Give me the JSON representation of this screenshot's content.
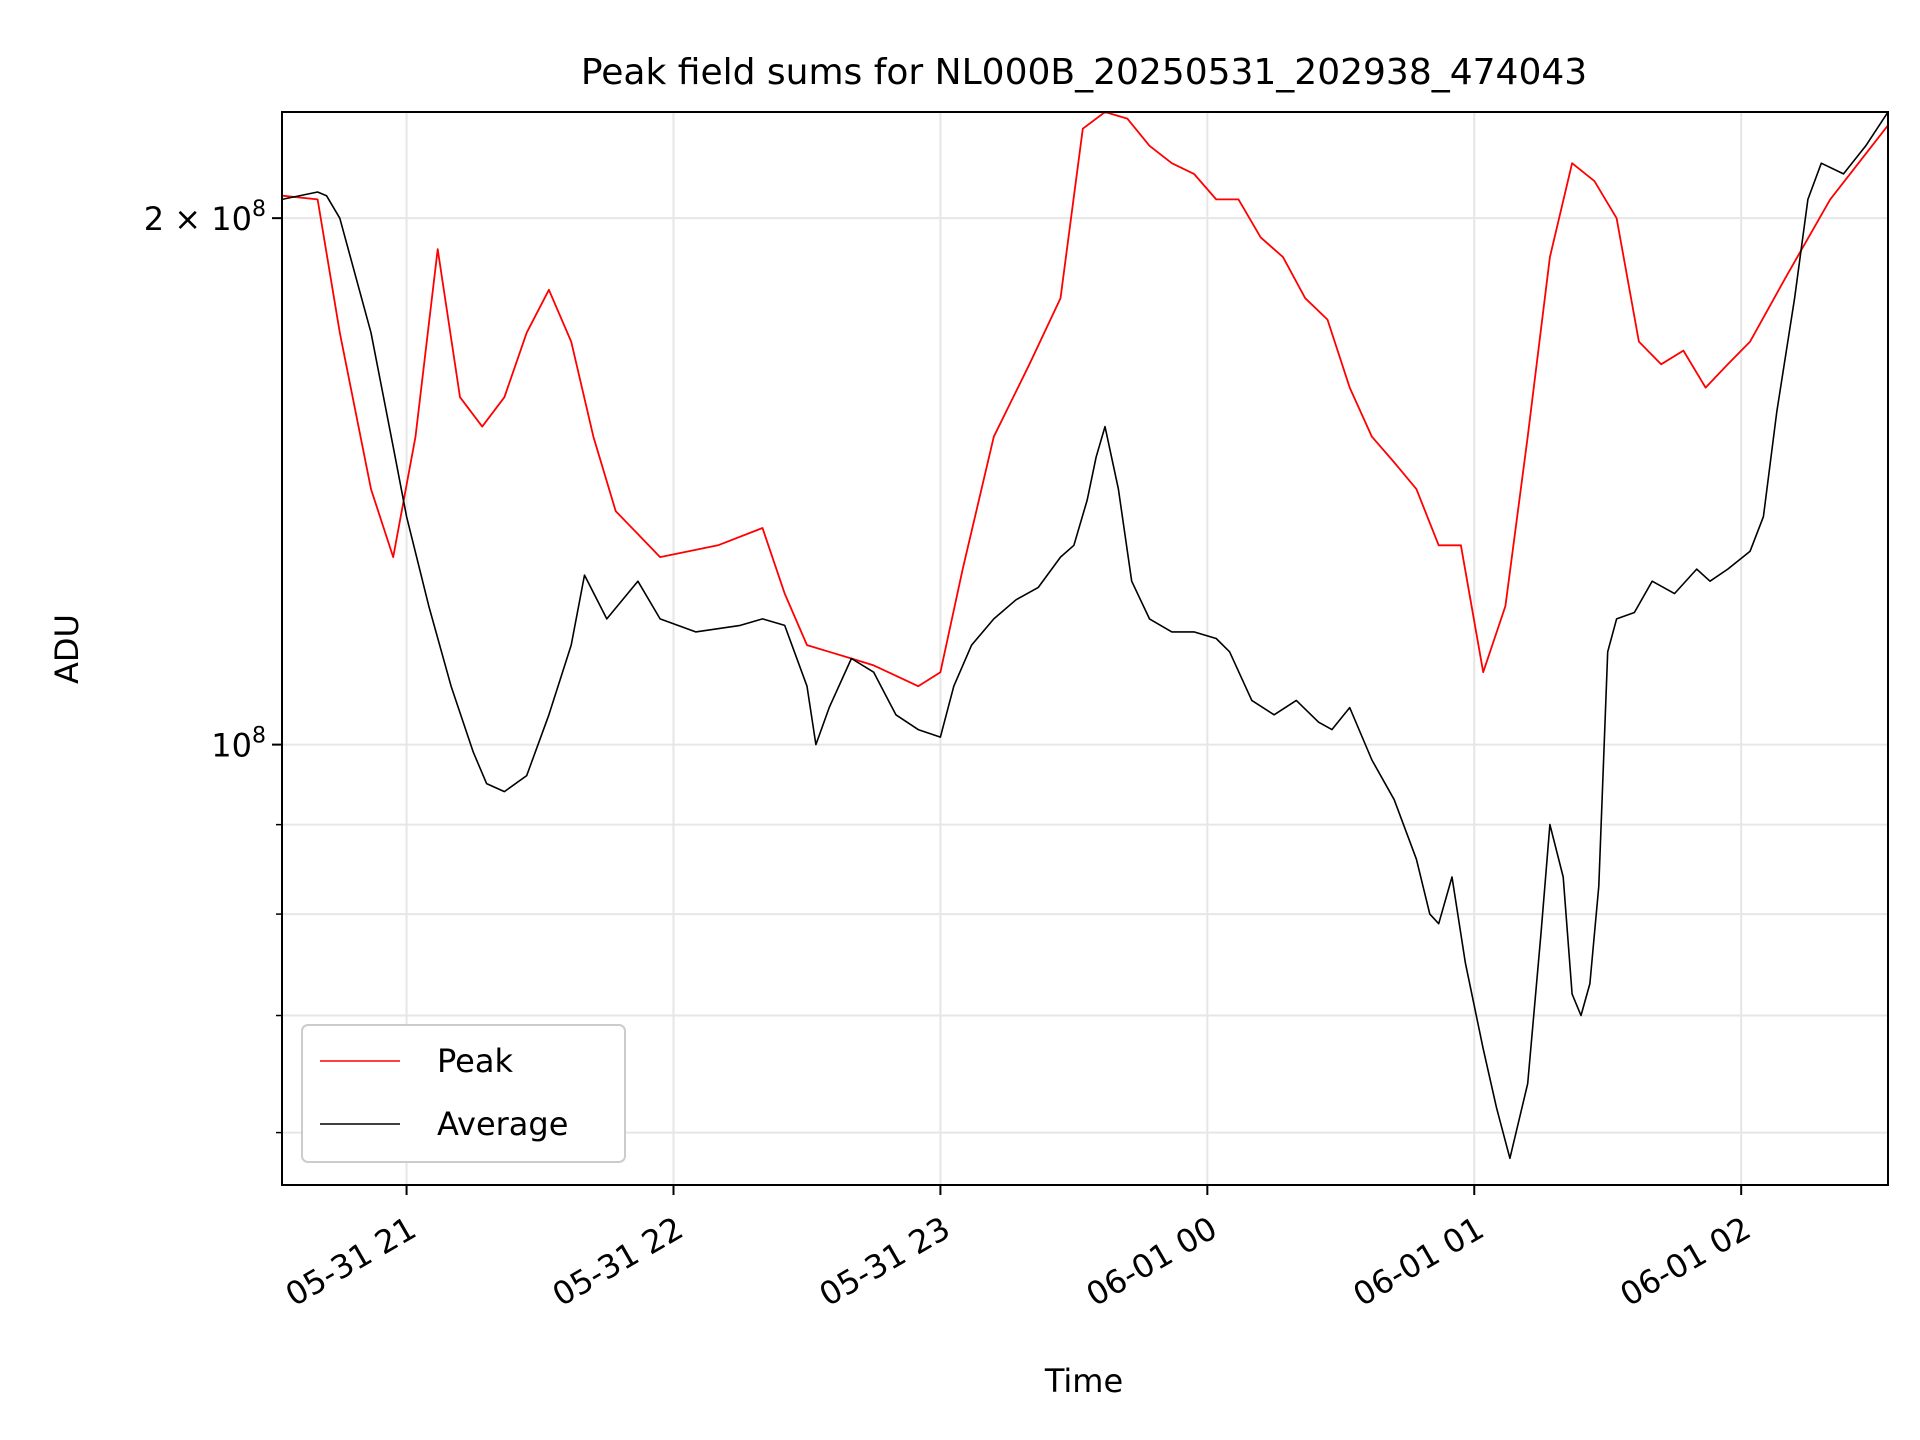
{
  "chart_data": {
    "type": "line",
    "title": "Peak field sums for NL000B_20250531_202938_474043",
    "xlabel": "Time",
    "ylabel": "ADU",
    "y_scale": "log",
    "ylim": [
      56000000,
      230000000
    ],
    "xlim": [
      "2025-05-31 20:32",
      "2025-06-01 02:33"
    ],
    "grid": true,
    "legend_position": "lower-left",
    "x_ticks": [
      {
        "t": "2025-05-31 21:00",
        "label": "05-31 21"
      },
      {
        "t": "2025-05-31 22:00",
        "label": "05-31 22"
      },
      {
        "t": "2025-05-31 23:00",
        "label": "05-31 23"
      },
      {
        "t": "2025-06-01 00:00",
        "label": "06-01 00"
      },
      {
        "t": "2025-06-01 01:00",
        "label": "06-01 01"
      },
      {
        "t": "2025-06-01 02:00",
        "label": "06-01 02"
      }
    ],
    "y_ticks": [
      {
        "value": 200000000,
        "mantissa": "2",
        "times": "×",
        "base": "10",
        "exp": "8"
      },
      {
        "value": 100000000,
        "mantissa": "",
        "times": "",
        "base": "10",
        "exp": "8"
      }
    ],
    "y_minor_ticks": [
      60000000,
      70000000,
      80000000,
      90000000
    ],
    "series": [
      {
        "name": "Peak",
        "color": "#ff0000",
        "x": [
          "2025-05-31 20:32",
          "2025-05-31 20:40",
          "2025-05-31 20:45",
          "2025-05-31 20:52",
          "2025-05-31 20:57",
          "2025-05-31 21:02",
          "2025-05-31 21:07",
          "2025-05-31 21:12",
          "2025-05-31 21:17",
          "2025-05-31 21:22",
          "2025-05-31 21:27",
          "2025-05-31 21:32",
          "2025-05-31 21:37",
          "2025-05-31 21:42",
          "2025-05-31 21:47",
          "2025-05-31 21:57",
          "2025-05-31 22:10",
          "2025-05-31 22:20",
          "2025-05-31 22:25",
          "2025-05-31 22:30",
          "2025-05-31 22:35",
          "2025-05-31 22:40",
          "2025-05-31 22:45",
          "2025-05-31 22:55",
          "2025-05-31 23:00",
          "2025-05-31 23:05",
          "2025-05-31 23:12",
          "2025-05-31 23:20",
          "2025-05-31 23:27",
          "2025-05-31 23:32",
          "2025-05-31 23:37",
          "2025-05-31 23:42",
          "2025-05-31 23:47",
          "2025-05-31 23:52",
          "2025-05-31 23:57",
          "2025-06-01 00:02",
          "2025-06-01 00:07",
          "2025-06-01 00:12",
          "2025-06-01 00:17",
          "2025-06-01 00:22",
          "2025-06-01 00:27",
          "2025-06-01 00:32",
          "2025-06-01 00:37",
          "2025-06-01 00:42",
          "2025-06-01 00:47",
          "2025-06-01 00:52",
          "2025-06-01 00:57",
          "2025-06-01 01:02",
          "2025-06-01 01:07",
          "2025-06-01 01:12",
          "2025-06-01 01:17",
          "2025-06-01 01:22",
          "2025-06-01 01:27",
          "2025-06-01 01:32",
          "2025-06-01 01:37",
          "2025-06-01 01:42",
          "2025-06-01 01:47",
          "2025-06-01 01:52",
          "2025-06-01 01:57",
          "2025-06-01 02:02",
          "2025-06-01 02:10",
          "2025-06-01 02:20",
          "2025-06-01 02:33"
        ],
        "values": [
          206000000,
          205000000,
          172000000,
          140000000,
          128000000,
          150000000,
          192000000,
          158000000,
          152000000,
          158000000,
          172000000,
          182000000,
          170000000,
          150000000,
          136000000,
          128000000,
          130000000,
          133000000,
          122000000,
          114000000,
          113000000,
          112000000,
          111000000,
          108000000,
          110000000,
          126000000,
          150000000,
          165000000,
          180000000,
          225000000,
          230000000,
          228000000,
          220000000,
          215000000,
          212000000,
          205000000,
          205000000,
          195000000,
          190000000,
          180000000,
          175000000,
          160000000,
          150000000,
          145000000,
          140000000,
          130000000,
          130000000,
          110000000,
          120000000,
          150000000,
          190000000,
          215000000,
          210000000,
          200000000,
          170000000,
          165000000,
          168000000,
          160000000,
          165000000,
          170000000,
          185000000,
          205000000,
          226000000
        ]
      },
      {
        "name": "Average",
        "color": "#000000",
        "x": [
          "2025-05-31 20:32",
          "2025-05-31 20:40",
          "2025-05-31 20:42",
          "2025-05-31 20:45",
          "2025-05-31 20:52",
          "2025-05-31 20:57",
          "2025-05-31 21:00",
          "2025-05-31 21:05",
          "2025-05-31 21:10",
          "2025-05-31 21:15",
          "2025-05-31 21:18",
          "2025-05-31 21:22",
          "2025-05-31 21:27",
          "2025-05-31 21:32",
          "2025-05-31 21:37",
          "2025-05-31 21:40",
          "2025-05-31 21:45",
          "2025-05-31 21:52",
          "2025-05-31 21:57",
          "2025-05-31 22:05",
          "2025-05-31 22:15",
          "2025-05-31 22:20",
          "2025-05-31 22:25",
          "2025-05-31 22:30",
          "2025-05-31 22:32",
          "2025-05-31 22:35",
          "2025-05-31 22:40",
          "2025-05-31 22:45",
          "2025-05-31 22:50",
          "2025-05-31 22:55",
          "2025-05-31 23:00",
          "2025-05-31 23:03",
          "2025-05-31 23:07",
          "2025-05-31 23:12",
          "2025-05-31 23:17",
          "2025-05-31 23:22",
          "2025-05-31 23:27",
          "2025-05-31 23:30",
          "2025-05-31 23:33",
          "2025-05-31 23:35",
          "2025-05-31 23:37",
          "2025-05-31 23:40",
          "2025-05-31 23:43",
          "2025-05-31 23:47",
          "2025-05-31 23:52",
          "2025-05-31 23:57",
          "2025-06-01 00:02",
          "2025-06-01 00:05",
          "2025-06-01 00:10",
          "2025-06-01 00:15",
          "2025-06-01 00:20",
          "2025-06-01 00:25",
          "2025-06-01 00:28",
          "2025-06-01 00:32",
          "2025-06-01 00:37",
          "2025-06-01 00:42",
          "2025-06-01 00:47",
          "2025-06-01 00:50",
          "2025-06-01 00:52",
          "2025-06-01 00:55",
          "2025-06-01 00:58",
          "2025-06-01 01:02",
          "2025-06-01 01:05",
          "2025-06-01 01:08",
          "2025-06-01 01:12",
          "2025-06-01 01:15",
          "2025-06-01 01:17",
          "2025-06-01 01:20",
          "2025-06-01 01:22",
          "2025-06-01 01:24",
          "2025-06-01 01:26",
          "2025-06-01 01:28",
          "2025-06-01 01:30",
          "2025-06-01 01:32",
          "2025-06-01 01:36",
          "2025-06-01 01:40",
          "2025-06-01 01:45",
          "2025-06-01 01:50",
          "2025-06-01 01:53",
          "2025-06-01 01:57",
          "2025-06-01 02:02",
          "2025-06-01 02:05",
          "2025-06-01 02:08",
          "2025-06-01 02:12",
          "2025-06-01 02:15",
          "2025-06-01 02:18",
          "2025-06-01 02:23",
          "2025-06-01 02:28",
          "2025-06-01 02:33"
        ],
        "values": [
          205000000,
          207000000,
          206000000,
          200000000,
          172000000,
          148000000,
          135000000,
          120000000,
          108000000,
          99000000,
          95000000,
          94000000,
          96000000,
          104000000,
          114000000,
          125000000,
          118000000,
          124000000,
          118000000,
          116000000,
          117000000,
          118000000,
          117000000,
          108000000,
          100000000,
          105000000,
          112000000,
          110000000,
          104000000,
          102000000,
          101000000,
          108000000,
          114000000,
          118000000,
          121000000,
          123000000,
          128000000,
          130000000,
          138000000,
          146000000,
          152000000,
          140000000,
          124000000,
          118000000,
          116000000,
          116000000,
          115000000,
          113000000,
          106000000,
          104000000,
          106000000,
          103000000,
          102000000,
          105000000,
          98000000,
          93000000,
          86000000,
          80000000,
          79000000,
          84000000,
          75000000,
          67000000,
          62000000,
          58000000,
          64000000,
          78000000,
          90000000,
          84000000,
          72000000,
          70000000,
          73000000,
          83000000,
          113000000,
          118000000,
          119000000,
          124000000,
          122000000,
          126000000,
          124000000,
          126000000,
          129000000,
          135000000,
          155000000,
          180000000,
          205000000,
          215000000,
          212000000,
          220000000,
          230000000
        ]
      }
    ]
  }
}
